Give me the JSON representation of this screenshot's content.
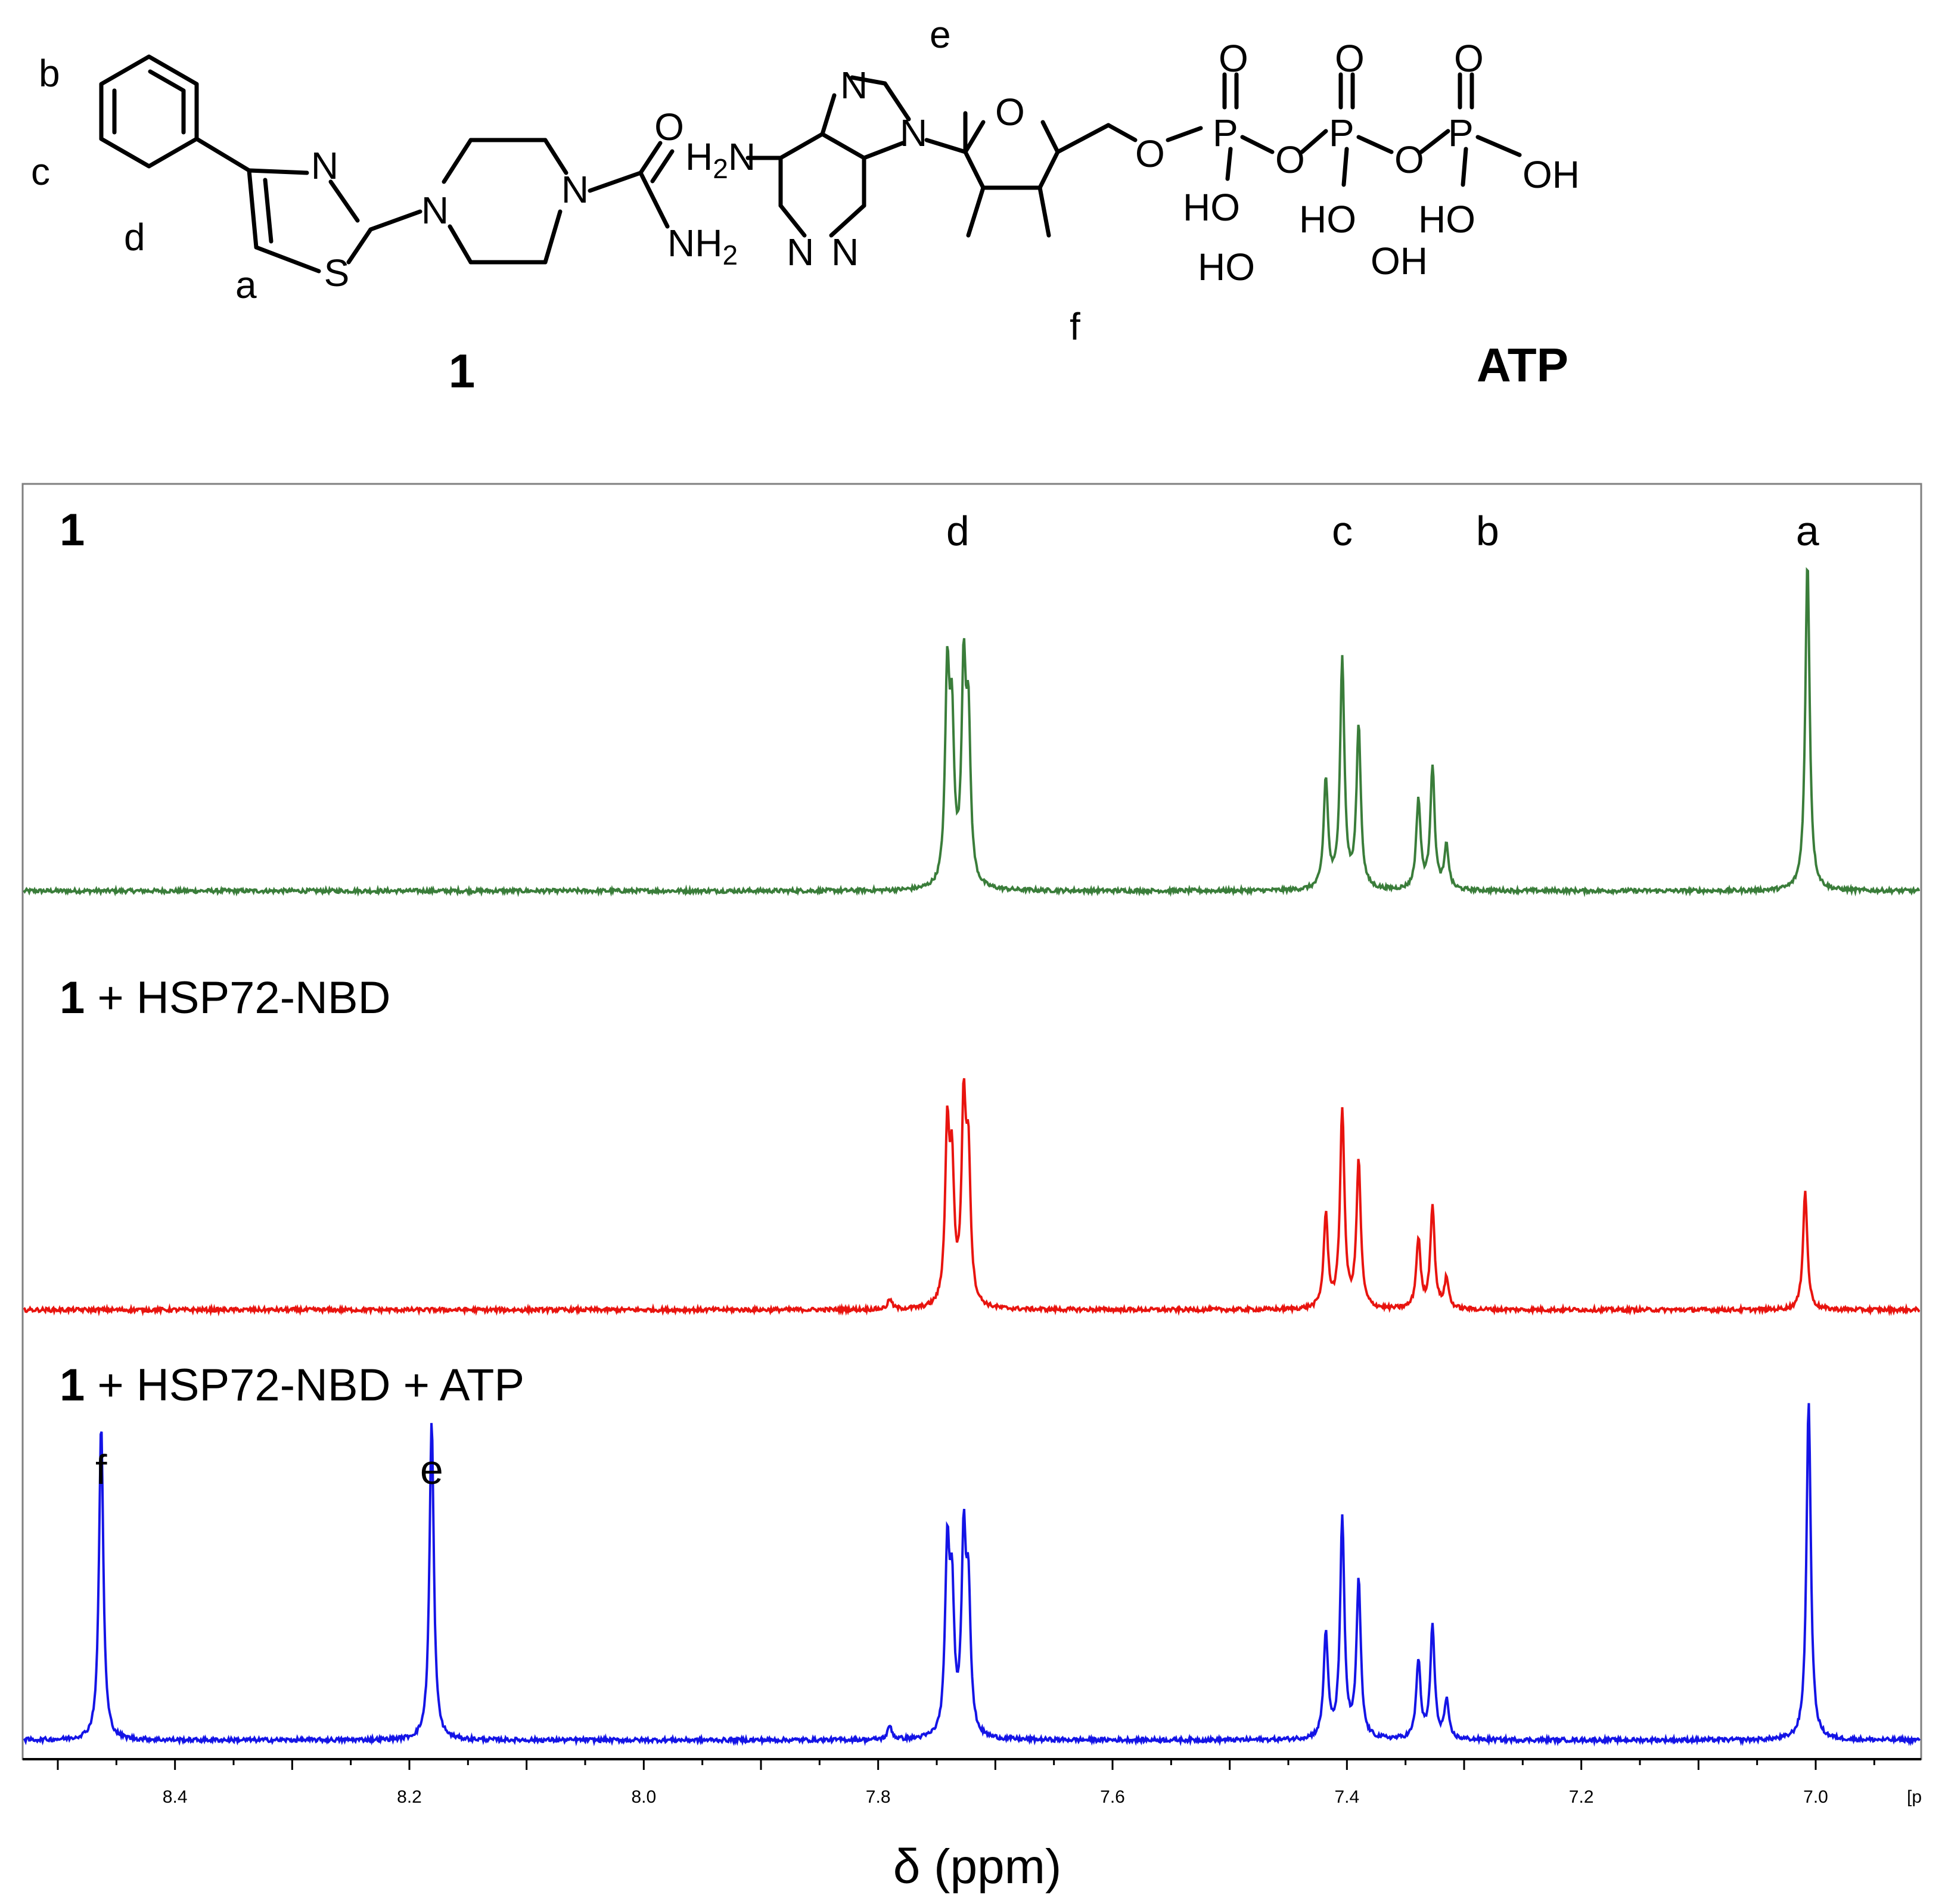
{
  "compound_1": {
    "label": "1",
    "proton_labels": {
      "a": "a",
      "b": "b",
      "c": "c",
      "d": "d"
    },
    "atoms": {
      "N1": "N",
      "S": "S",
      "N2": "N",
      "N3": "N",
      "O": "O",
      "NH": "NH",
      "sub2": "2"
    }
  },
  "atp": {
    "label": "ATP",
    "proton_labels": {
      "e": "e",
      "f": "f"
    },
    "atoms": {
      "H2N_H": "H",
      "H2N_2": "2",
      "H2N_N": "N",
      "N7": "N",
      "N9": "N",
      "N1": "N",
      "N3": "N",
      "O_ring": "O",
      "HO1": "HO",
      "OH1": "OH",
      "O5": "O",
      "P1": "P",
      "P2": "P",
      "P3": "P",
      "O_p1": "O",
      "O_p2": "O",
      "O_p3": "O",
      "O_bridge1": "O",
      "O_bridge2": "O",
      "HO_p1": "HO",
      "HO_p2": "HO",
      "HO_p3": "HO",
      "OH_p3": "OH"
    }
  },
  "panel_labels": {
    "top_bold": "1",
    "middle_bold": "1",
    "middle_rest": " + HSP72-NBD",
    "bottom_bold": "1",
    "bottom_rest": " + HSP72-NBD + ATP"
  },
  "chart_data": {
    "type": "line",
    "xlabel": "δ (ppm)",
    "x_unit_fragment": "[p",
    "xlim": [
      8.53,
      6.91
    ],
    "x_reversed": true,
    "xticks": [
      8.4,
      8.2,
      8.0,
      7.8,
      7.6,
      7.4,
      7.2,
      7.0
    ],
    "xtick_labels": [
      "8.4",
      "8.2",
      "8.0",
      "7.8",
      "7.6",
      "7.4",
      "7.2",
      "7.0"
    ],
    "series": [
      {
        "name": "1",
        "color": "#3a7d3a",
        "peaks": [
          {
            "ppm": 7.741,
            "height": 0.62
          },
          {
            "ppm": 7.737,
            "height": 0.45
          },
          {
            "ppm": 7.727,
            "height": 0.63
          },
          {
            "ppm": 7.723,
            "height": 0.46
          },
          {
            "ppm": 7.418,
            "height": 0.33
          },
          {
            "ppm": 7.404,
            "height": 0.69
          },
          {
            "ppm": 7.39,
            "height": 0.49
          },
          {
            "ppm": 7.339,
            "height": 0.27
          },
          {
            "ppm": 7.327,
            "height": 0.37
          },
          {
            "ppm": 7.315,
            "height": 0.13
          },
          {
            "ppm": 7.007,
            "height": 1.0
          }
        ]
      },
      {
        "name": "1 + HSP72-NBD",
        "color": "#e8140f",
        "peaks": [
          {
            "ppm": 7.741,
            "height": 0.51
          },
          {
            "ppm": 7.737,
            "height": 0.38
          },
          {
            "ppm": 7.727,
            "height": 0.58
          },
          {
            "ppm": 7.723,
            "height": 0.42
          },
          {
            "ppm": 7.418,
            "height": 0.28
          },
          {
            "ppm": 7.404,
            "height": 0.6
          },
          {
            "ppm": 7.39,
            "height": 0.44
          },
          {
            "ppm": 7.339,
            "height": 0.21
          },
          {
            "ppm": 7.327,
            "height": 0.31
          },
          {
            "ppm": 7.315,
            "height": 0.09
          },
          {
            "ppm": 7.009,
            "height": 0.36
          },
          {
            "ppm": 7.79,
            "height": 0.03
          }
        ]
      },
      {
        "name": "1 + HSP72-NBD + ATP",
        "color": "#1414e6",
        "peaks": [
          {
            "ppm": 8.463,
            "height": 0.93
          },
          {
            "ppm": 8.181,
            "height": 0.94
          },
          {
            "ppm": 7.741,
            "height": 0.53
          },
          {
            "ppm": 7.737,
            "height": 0.39
          },
          {
            "ppm": 7.727,
            "height": 0.56
          },
          {
            "ppm": 7.723,
            "height": 0.4
          },
          {
            "ppm": 7.418,
            "height": 0.31
          },
          {
            "ppm": 7.404,
            "height": 0.64
          },
          {
            "ppm": 7.39,
            "height": 0.46
          },
          {
            "ppm": 7.339,
            "height": 0.23
          },
          {
            "ppm": 7.327,
            "height": 0.33
          },
          {
            "ppm": 7.315,
            "height": 0.11
          },
          {
            "ppm": 7.006,
            "height": 1.0
          },
          {
            "ppm": 7.79,
            "height": 0.04
          }
        ]
      }
    ],
    "annotations": [
      {
        "text": "d",
        "series": "1",
        "ppm": 7.732
      },
      {
        "text": "c",
        "series": "1",
        "ppm": 7.404
      },
      {
        "text": "b",
        "series": "1",
        "ppm": 7.28
      },
      {
        "text": "a",
        "series": "1",
        "ppm": 7.007
      },
      {
        "text": "f",
        "series": "1 + HSP72-NBD + ATP",
        "ppm": 8.463
      },
      {
        "text": "e",
        "series": "1 + HSP72-NBD + ATP",
        "ppm": 8.181
      }
    ]
  }
}
